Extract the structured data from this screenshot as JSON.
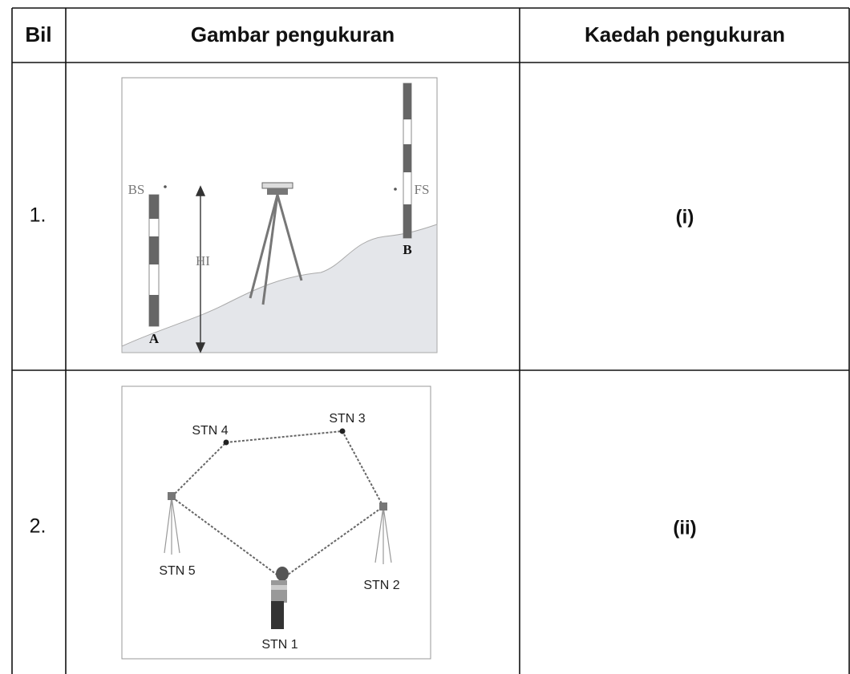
{
  "table": {
    "header": [
      "Bil",
      "Gambar pengukuran",
      "Kaedah pengukuran"
    ],
    "rows": [
      {
        "bil": "1.",
        "figure": {
          "labels": [
            "BS",
            "FS",
            "HI",
            "A",
            "B"
          ]
        },
        "method": "(i)"
      },
      {
        "bil": "2.",
        "figure": {
          "labels": [
            "STN 4",
            "STN 3",
            "STN 5",
            "STN 2",
            "STN 1"
          ]
        },
        "method": "(ii)"
      }
    ]
  }
}
